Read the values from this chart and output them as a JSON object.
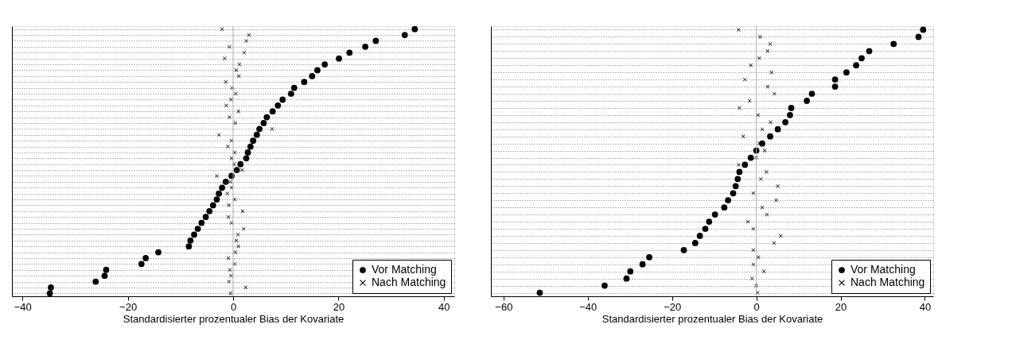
{
  "chart_data": [
    {
      "type": "scatter",
      "orientation": "horizontal",
      "xlabel": "Standardisierter prozentualer Bias der Kovariate",
      "categories": [
        null,
        null,
        null,
        null,
        null,
        null,
        null,
        null,
        null,
        null,
        null,
        null,
        null,
        null,
        null,
        null,
        null,
        null,
        null,
        null,
        null,
        null,
        null,
        null,
        null,
        null,
        null,
        null,
        null,
        null,
        null,
        null,
        null,
        null,
        null,
        null,
        null,
        null,
        null,
        null,
        null,
        null,
        null,
        null,
        null,
        null
      ],
      "series": [
        {
          "name": "Vor Matching",
          "color": "#000000",
          "marker": "circle",
          "values": [
            34.5,
            32.6,
            27.1,
            25.1,
            22.1,
            20.1,
            17.4,
            16.0,
            15.0,
            13.5,
            11.6,
            11.0,
            9.4,
            8.5,
            7.5,
            6.4,
            5.8,
            5.0,
            4.5,
            3.8,
            3.3,
            2.8,
            2.5,
            1.4,
            0.7,
            -0.3,
            -1.4,
            -2.1,
            -2.7,
            -3.1,
            -3.8,
            -4.5,
            -5.2,
            -6.0,
            -6.7,
            -7.4,
            -8.1,
            -8.4,
            -14.2,
            -16.6,
            -17.4,
            -24.1,
            -24.4,
            -26.1,
            -34.6,
            -34.8
          ]
        },
        {
          "name": "Nach Matching",
          "color": "#000000",
          "marker": "cross",
          "values": [
            -2.1,
            3.0,
            2.5,
            -0.7,
            2.1,
            -1.6,
            1.2,
            0.6,
            1.1,
            -1.4,
            -0.2,
            0.5,
            -0.4,
            -1.3,
            1.0,
            -0.7,
            0.4,
            7.4,
            -2.7,
            -0.3,
            -1.0,
            0.3,
            -0.3,
            0.2,
            1.7,
            -3.1,
            -0.5,
            -0.3,
            -1.1,
            0.3,
            -0.8,
            1.8,
            -0.9,
            -0.3,
            2.0,
            0.9,
            0.6,
            1.0,
            0.4,
            -0.9,
            0.3,
            -0.6,
            -0.4,
            -0.8,
            2.4,
            -0.5
          ]
        }
      ],
      "xlim": [
        -42,
        42
      ],
      "xticks": [
        -40,
        -20,
        0,
        20,
        40
      ],
      "tick_labels": "x",
      "grid": "y",
      "line_style": "dotted",
      "legend": "bottom right",
      "ref_lines": [
        {
          "axis": "x",
          "value": 0,
          "color": "#b0b0b0"
        }
      ]
    },
    {
      "type": "scatter",
      "orientation": "horizontal",
      "xlabel": "Standardisierter prozentualer Bias der Kovariate",
      "categories": [
        null,
        null,
        null,
        null,
        null,
        null,
        null,
        null,
        null,
        null,
        null,
        null,
        null,
        null,
        null,
        null,
        null,
        null,
        null,
        null,
        null,
        null,
        null,
        null,
        null,
        null,
        null,
        null,
        null,
        null,
        null,
        null,
        null,
        null,
        null,
        null,
        null,
        null
      ],
      "series": [
        {
          "name": "Vor Matching",
          "color": "#000000",
          "marker": "circle",
          "values": [
            39.6,
            38.5,
            32.6,
            26.8,
            25.0,
            23.7,
            21.4,
            18.7,
            18.7,
            13.2,
            12.0,
            8.3,
            8.0,
            6.9,
            5.1,
            3.3,
            1.4,
            0.0,
            -1.3,
            -2.7,
            -4.0,
            -4.4,
            -4.9,
            -5.5,
            -6.7,
            -7.6,
            -9.8,
            -11.2,
            -12.1,
            -13.4,
            -14.5,
            -17.2,
            -25.4,
            -27.0,
            -29.9,
            -30.8,
            -36.0,
            -51.4
          ]
        },
        {
          "name": "Nach Matching",
          "color": "#000000",
          "marker": "cross",
          "values": [
            -4.2,
            0.9,
            3.3,
            2.7,
            0.7,
            -1.3,
            3.6,
            -2.7,
            2.7,
            4.3,
            -1.6,
            -4.0,
            0.4,
            3.4,
            1.4,
            -3.1,
            0.7,
            2.0,
            0.0,
            -4.2,
            2.4,
            1.1,
            5.1,
            -0.7,
            4.7,
            1.4,
            2.5,
            -2.0,
            -0.7,
            5.8,
            4.2,
            -0.7,
            0.5,
            -0.7,
            1.8,
            -1.0,
            0.0,
            0.3
          ]
        }
      ],
      "xlim": [
        -63,
        42
      ],
      "xticks": [
        -60,
        -40,
        -20,
        0,
        20,
        40
      ],
      "tick_labels": "x",
      "grid": "y",
      "line_style": "dotted",
      "legend": "bottom right",
      "ref_lines": [
        {
          "axis": "x",
          "value": 0,
          "color": "#b0b0b0"
        }
      ]
    }
  ]
}
